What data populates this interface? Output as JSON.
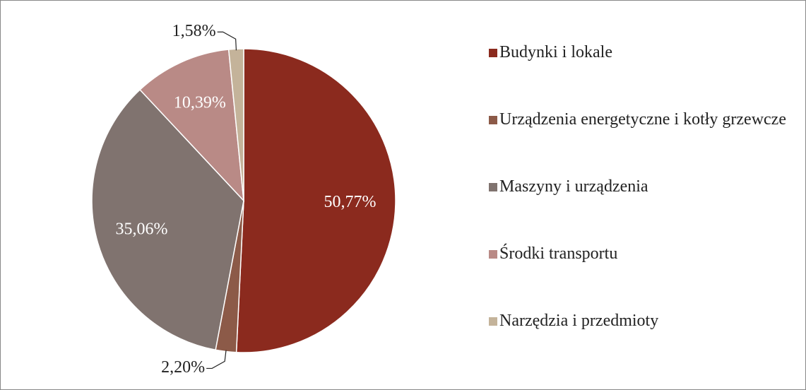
{
  "chart_data": {
    "type": "pie",
    "categories": [
      "Budynki i lokale",
      "Urządzenia energetyczne i kotły grzewcze",
      "Maszyny i urządzenia",
      "Środki transportu",
      "Narzędzia i przedmioty"
    ],
    "values": [
      50.77,
      2.2,
      35.06,
      10.39,
      1.58
    ],
    "value_labels": [
      "50,77%",
      "2,20%",
      "35,06%",
      "10,39%",
      "1,58%"
    ],
    "colors": [
      "#8b2a1e",
      "#8c5a48",
      "#80736f",
      "#b98a86",
      "#c4b39a"
    ],
    "legend": "right"
  }
}
